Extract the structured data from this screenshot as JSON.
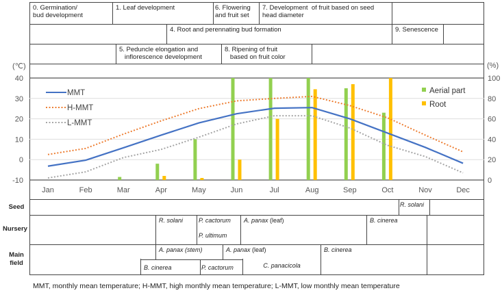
{
  "stages": {
    "row1": [
      "0. Germination/\nbud development",
      "1. Leaf development",
      "6. Flowering\nand fruit set",
      "7. Development  of fruit based on seed\nhead diameter",
      ""
    ],
    "row2": [
      "",
      "4. Root and perennating bud formation",
      "9. Senescence",
      ""
    ],
    "row3": [
      "",
      "5. Peduncle elongation and\n   inflorescence development",
      "8. Ripening of fruit\n   based on fruit color",
      ""
    ]
  },
  "diseases": {
    "seed_label": "Seed",
    "nursery_label": "Nursery",
    "main_label": "Main\nfield",
    "seed": [
      "R. solani"
    ],
    "nursery": [
      "R. solani",
      "P. cactorum",
      "P. ultimum",
      "A. panax",
      "(leaf)",
      "B. cinerea"
    ],
    "main_top": [
      "A. panax (stem)",
      "A. panax",
      "(leaf)",
      "B. cinerea"
    ],
    "main_bottom": [
      "B. cinerea",
      "P. cactorum",
      "C. panacicola"
    ]
  },
  "footnote": "MMT,  monthly mean temperature; H-MMT,  high monthly mean temperature; L-MMT,  low monthly mean temperature",
  "chart_data": {
    "type": "line+bar",
    "categories": [
      "Jan",
      "Feb",
      "Mar",
      "Apr",
      "May",
      "Jun",
      "Jul",
      "Aug",
      "Sep",
      "Oct",
      "Nov",
      "Dec"
    ],
    "y_left": {
      "label": "(℃)",
      "range": [
        -10,
        40
      ],
      "ticks": [
        "40",
        "30",
        "20",
        "10",
        "0",
        "-10"
      ]
    },
    "y_right": {
      "label": "(%)",
      "range": [
        0,
        100
      ],
      "ticks": [
        "100",
        "80",
        "60",
        "40",
        "20",
        "0"
      ]
    },
    "lines": [
      {
        "name": "MMT",
        "color": "#4472c4",
        "style": "solid",
        "values": [
          -3.2,
          -0.3,
          5.8,
          12,
          18,
          22.5,
          25.2,
          25.5,
          20,
          13,
          6,
          -1.8
        ]
      },
      {
        "name": "H-MMT",
        "color": "#ed7d31",
        "style": "dotted",
        "values": [
          2.5,
          5.5,
          12.5,
          19,
          25,
          28.8,
          30,
          31,
          26.5,
          20.5,
          12,
          3.8
        ]
      },
      {
        "name": "L-MMT",
        "color": "#a5a5a5",
        "style": "dotted",
        "values": [
          -9,
          -6,
          1,
          5,
          11,
          17.5,
          21.5,
          21.5,
          15.5,
          7,
          1.5,
          -6.5
        ]
      }
    ],
    "bars": [
      {
        "name": "Aerial part",
        "color": "#92d050",
        "values": [
          0,
          0,
          3,
          16,
          40,
          100,
          100,
          100,
          90,
          66,
          0,
          0
        ]
      },
      {
        "name": "Root",
        "color": "#ffc000",
        "values": [
          0,
          0,
          0,
          4,
          2,
          20,
          60,
          89,
          94,
          100,
          0,
          0
        ]
      }
    ],
    "legend_bars": "top-right",
    "legend_lines": "top-left",
    "grid": true
  }
}
